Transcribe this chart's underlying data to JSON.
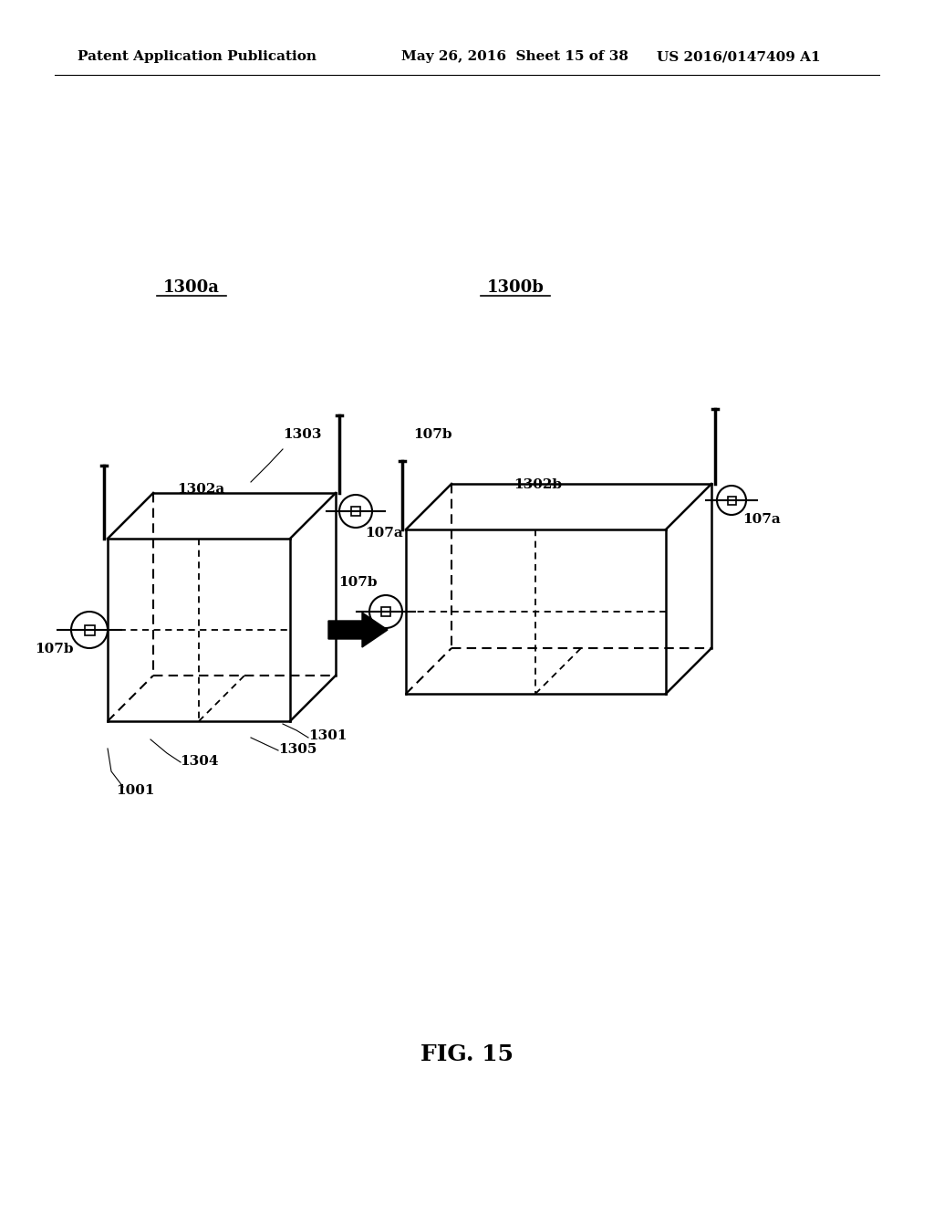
{
  "bg_color": "#ffffff",
  "header_left": "Patent Application Publication",
  "header_mid": "May 26, 2016  Sheet 15 of 38",
  "header_right": "US 2016/0147409 A1",
  "fig_label": "FIG. 15",
  "label_1300a": "1300a",
  "label_1300b": "1300b",
  "label_1302a": "1302a",
  "label_1302b": "1302b",
  "label_107a_left": "107a",
  "label_107b_left": "107b",
  "label_107a_right": "107a",
  "label_107b_right": "107b",
  "label_1303": "1303",
  "label_1301": "1301",
  "label_1304": "1304",
  "label_1305": "1305",
  "label_1001": "1001"
}
